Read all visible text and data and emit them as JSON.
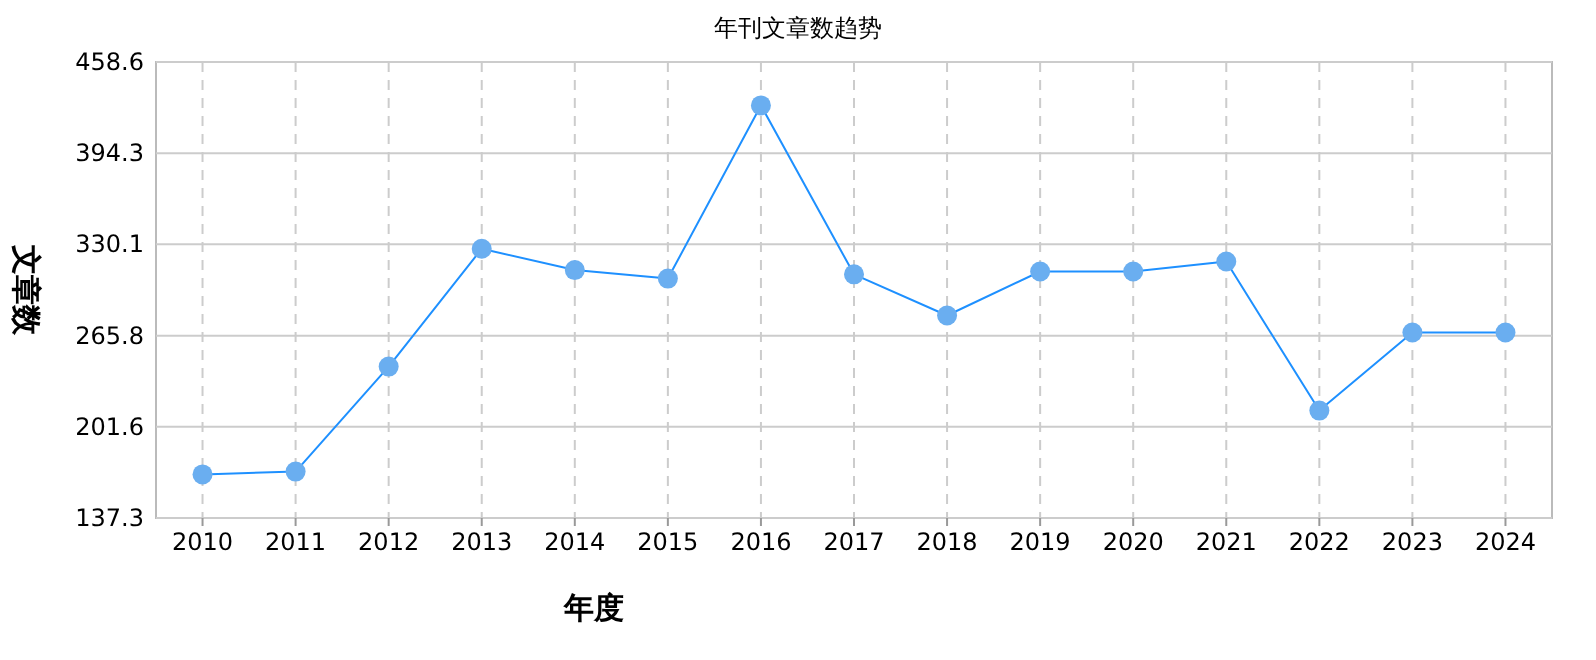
{
  "chart_data": {
    "type": "line",
    "title": "年刊文章数趋势",
    "xlabel": "年度",
    "ylabel": "文章数",
    "categories": [
      "2010",
      "2011",
      "2012",
      "2013",
      "2014",
      "2015",
      "2016",
      "2017",
      "2018",
      "2019",
      "2020",
      "2021",
      "2022",
      "2023",
      "2024"
    ],
    "series": [
      {
        "color": "#1e90ff",
        "values": [
          168,
          170,
          244,
          327,
          312,
          306,
          428,
          309,
          280,
          311,
          311,
          318,
          213,
          268,
          268
        ]
      }
    ],
    "ylim": [
      137.3,
      458.6
    ],
    "yticks": [
      137.3,
      201.6,
      265.8,
      330.1,
      394.3,
      458.6
    ],
    "grid": true,
    "marker": "circle",
    "line_style": "solid"
  }
}
